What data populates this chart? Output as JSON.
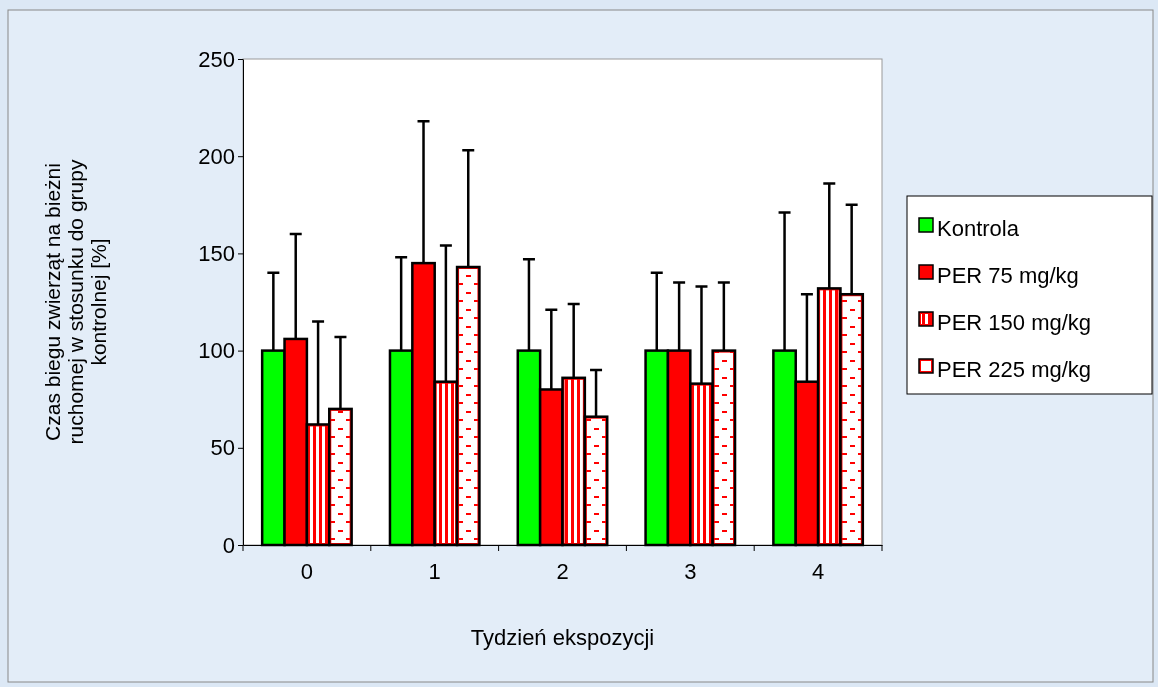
{
  "chart_data": {
    "type": "bar",
    "xlabel": "Tydzień ekspozycji",
    "ylabel": "Czas biegu zwierząt na bieżni ruchomej w stosunku do grupy kontrolnej [%]",
    "categories": [
      "0",
      "1",
      "2",
      "3",
      "4"
    ],
    "series": [
      {
        "name": "Kontrola",
        "color": "#00ff00",
        "values": [
          100,
          100,
          100,
          100,
          100
        ],
        "errors": [
          [
            100,
            140
          ],
          [
            100,
            148
          ],
          [
            100,
            147
          ],
          [
            100,
            140
          ],
          [
            100,
            171
          ]
        ]
      },
      {
        "name": "PER 75 mg/kg",
        "color": "#ff0000",
        "values": [
          106,
          145,
          80,
          100,
          84
        ],
        "errors": [
          [
            106,
            160
          ],
          [
            145,
            218
          ],
          [
            80,
            121
          ],
          [
            100,
            135
          ],
          [
            84,
            129
          ]
        ]
      },
      {
        "name": "PER 150 mg/kg",
        "color": "#ff0000",
        "values": [
          62,
          84,
          86,
          83,
          132
        ],
        "errors": [
          [
            62,
            115
          ],
          [
            84,
            154
          ],
          [
            86,
            124
          ],
          [
            83,
            133
          ],
          [
            132,
            186
          ]
        ]
      },
      {
        "name": "PER 225 mg/kg",
        "color": "#ff0000",
        "values": [
          70,
          143,
          66,
          100,
          129
        ],
        "errors": [
          [
            70,
            107
          ],
          [
            143,
            203
          ],
          [
            66,
            90
          ],
          [
            100,
            135
          ],
          [
            129,
            175
          ]
        ]
      }
    ],
    "ylim": [
      0,
      250
    ],
    "yticks": [
      0,
      50,
      100,
      150,
      200,
      250
    ],
    "grid": false,
    "legend": "right"
  }
}
